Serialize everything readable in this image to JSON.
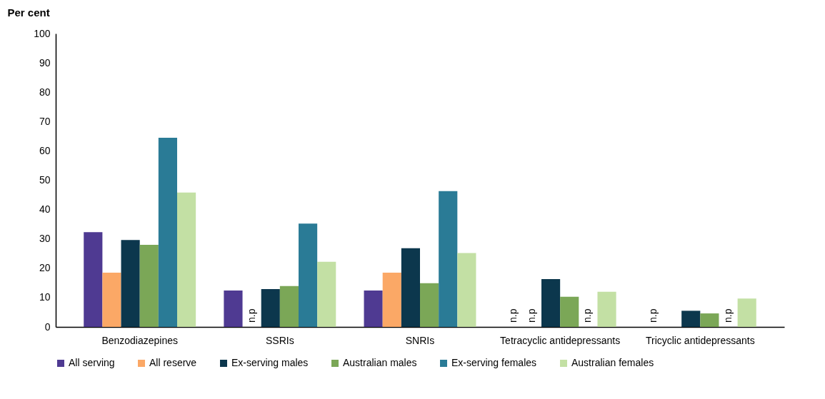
{
  "chart_data": {
    "type": "bar",
    "ylabel": "Per cent",
    "categories": [
      "Benzodiazepines",
      "SSRIs",
      "SNRIs",
      "Tetracyclic antidepressants",
      "Tricyclic antidepressants"
    ],
    "series": [
      {
        "name": "All serving",
        "color": "#4f3a92",
        "values": [
          32.3,
          12.4,
          12.4,
          null,
          null
        ],
        "value_labels": [
          null,
          null,
          null,
          "n.p",
          "n.p"
        ]
      },
      {
        "name": "All reserve",
        "color": "#fba866",
        "values": [
          18.5,
          null,
          18.5,
          null,
          null
        ],
        "value_labels": [
          null,
          "n.p",
          null,
          "n.p",
          null
        ]
      },
      {
        "name": "Ex-serving males",
        "color": "#0c374d",
        "values": [
          29.6,
          12.9,
          26.8,
          16.3,
          5.5
        ]
      },
      {
        "name": "Australian males",
        "color": "#7ba757",
        "values": [
          28.0,
          13.9,
          14.9,
          10.3,
          4.6
        ]
      },
      {
        "name": "Ex-serving females",
        "color": "#2a7b96",
        "values": [
          64.5,
          35.2,
          46.3,
          null,
          null
        ],
        "value_labels": [
          null,
          null,
          null,
          "n.p",
          "n.p"
        ]
      },
      {
        "name": "Australian females",
        "color": "#c3e0a4",
        "values": [
          45.8,
          22.2,
          25.2,
          12.0,
          9.7
        ]
      }
    ],
    "ylim": [
      0,
      100
    ],
    "yticks": [
      0,
      10,
      20,
      30,
      40,
      50,
      60,
      70,
      80,
      90,
      100
    ],
    "grid": false,
    "legend": "bottom"
  }
}
